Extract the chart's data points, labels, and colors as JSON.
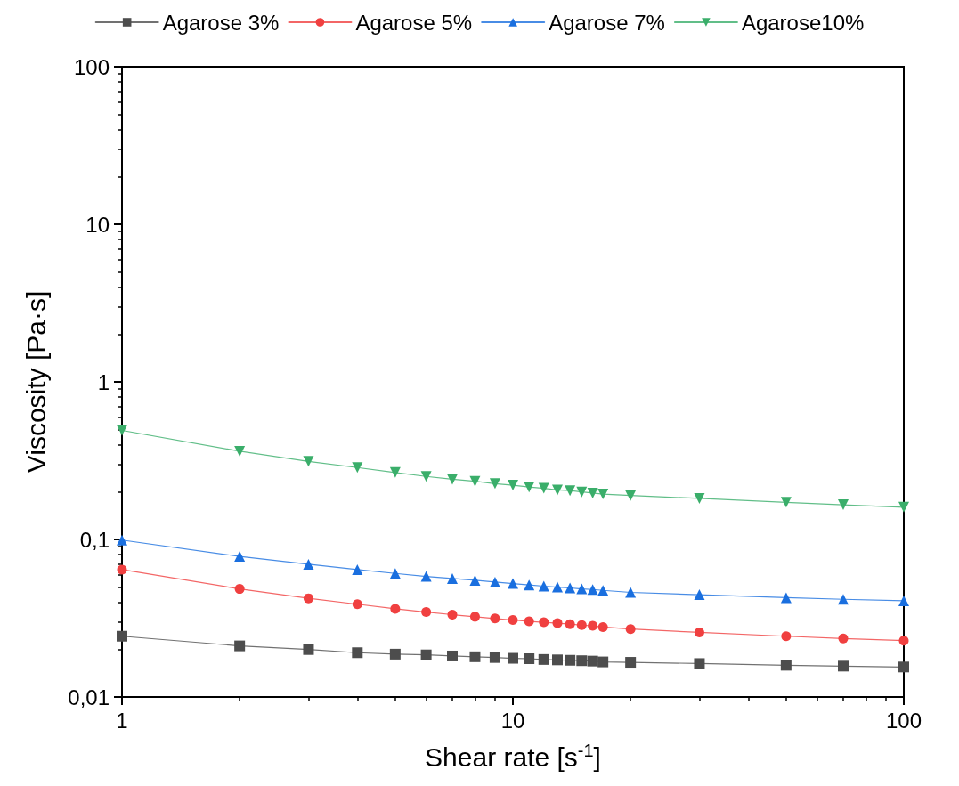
{
  "chart_data": {
    "type": "line",
    "xlabel": "Shear rate [s$^{-1}$]",
    "ylabel": "Viscosity [Pa·s]",
    "x": [
      1,
      2,
      3,
      4,
      5,
      6,
      7,
      8,
      9,
      10,
      11,
      12,
      13,
      14,
      15,
      16,
      17,
      20,
      30,
      50,
      70,
      100
    ],
    "series": [
      {
        "name": "Agarose 3%",
        "color": "#4d4d4d",
        "marker": "square",
        "values": [
          0.0243,
          0.0211,
          0.02,
          0.0191,
          0.0187,
          0.0185,
          0.0182,
          0.018,
          0.0178,
          0.0176,
          0.0175,
          0.0173,
          0.0172,
          0.0171,
          0.017,
          0.0169,
          0.0167,
          0.0166,
          0.0163,
          0.0159,
          0.0157,
          0.0155
        ]
      },
      {
        "name": "Agarose 5%",
        "color": "#f04040",
        "marker": "circle",
        "values": [
          0.0643,
          0.0485,
          0.0423,
          0.0388,
          0.0363,
          0.0346,
          0.0333,
          0.0323,
          0.0315,
          0.0308,
          0.0302,
          0.0298,
          0.0294,
          0.029,
          0.0286,
          0.0283,
          0.0278,
          0.027,
          0.0257,
          0.0243,
          0.0235,
          0.0228
        ]
      },
      {
        "name": "Agarose 7%",
        "color": "#1a6fdf",
        "marker": "triangle",
        "values": [
          0.099,
          0.078,
          0.0695,
          0.0643,
          0.0608,
          0.0582,
          0.0565,
          0.055,
          0.0536,
          0.0525,
          0.0514,
          0.0505,
          0.0498,
          0.0492,
          0.0485,
          0.0481,
          0.0475,
          0.0461,
          0.0446,
          0.0427,
          0.0417,
          0.0408
        ]
      },
      {
        "name": "Agarose10%",
        "color": "#3aae6a",
        "marker": "triangle-down",
        "values": [
          0.492,
          0.363,
          0.313,
          0.286,
          0.266,
          0.251,
          0.241,
          0.234,
          0.226,
          0.221,
          0.215,
          0.211,
          0.206,
          0.204,
          0.2,
          0.197,
          0.194,
          0.19,
          0.182,
          0.172,
          0.166,
          0.16
        ]
      }
    ],
    "log": "xy",
    "xlim": [
      1,
      100
    ],
    "xticks": [
      1,
      10,
      100
    ],
    "ylim": [
      0.01,
      100
    ],
    "yticks": [
      {
        "value": 0.01,
        "label": "0,01"
      },
      {
        "value": 0.1,
        "label": "0,1"
      },
      1,
      10,
      100
    ],
    "grid": false,
    "legend": "top",
    "line_style": "solid"
  }
}
